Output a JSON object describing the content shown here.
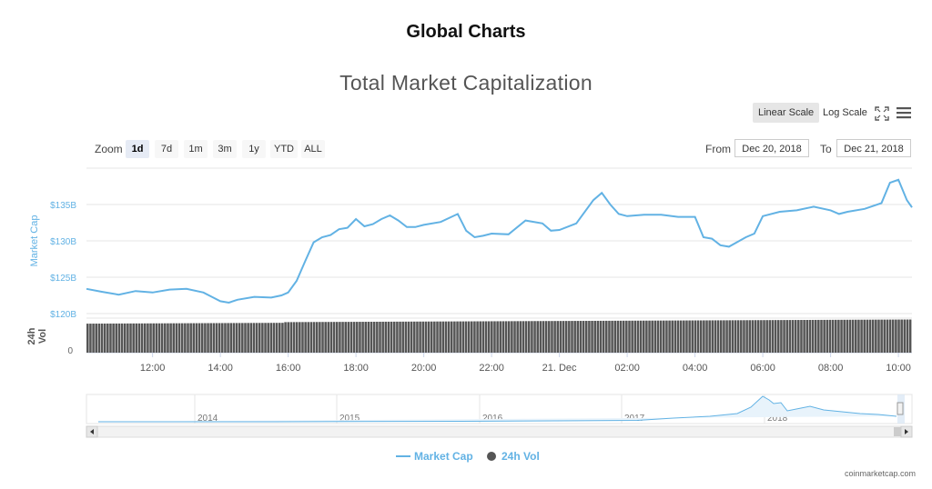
{
  "page": {
    "heading": "Global Charts",
    "credit": "coinmarketcap.com"
  },
  "toolbar": {
    "linear_scale": "Linear Scale",
    "log_scale": "Log Scale",
    "active_scale": "linear",
    "fullscreen_icon": "fullscreen-icon",
    "menu_icon": "hamburger-menu-icon"
  },
  "zoom": {
    "label": "Zoom",
    "options": [
      "1d",
      "7d",
      "1m",
      "3m",
      "1y",
      "YTD",
      "ALL"
    ],
    "selected": "1d"
  },
  "range": {
    "from_label": "From",
    "from_value": "Dec 20, 2018",
    "to_label": "To",
    "to_value": "Dec 21, 2018"
  },
  "chart_data": {
    "type": "line",
    "title": "Total Market Capitalization",
    "ylabel": "Market Cap",
    "y_ticks": [
      "$120B",
      "$125B",
      "$130B",
      "$135B"
    ],
    "ylim": [
      120,
      140
    ],
    "x_ticks": [
      "12:00",
      "14:00",
      "16:00",
      "18:00",
      "20:00",
      "22:00",
      "21. Dec",
      "02:00",
      "04:00",
      "06:00",
      "08:00",
      "10:00"
    ],
    "x_tick_hours": [
      12,
      14,
      16,
      18,
      20,
      22,
      24,
      26,
      28,
      30,
      32,
      34
    ],
    "xlim_hours": [
      10.05,
      34.4
    ],
    "series": [
      {
        "name": "Market Cap",
        "color": "#62b2e4",
        "x_hours": [
          10.05,
          10.5,
          11.0,
          11.5,
          12.0,
          12.5,
          13.0,
          13.5,
          13.75,
          14.0,
          14.25,
          14.5,
          15.0,
          15.5,
          15.8,
          16.0,
          16.25,
          16.5,
          16.75,
          17.0,
          17.25,
          17.5,
          17.75,
          18.0,
          18.25,
          18.5,
          18.75,
          19.0,
          19.25,
          19.5,
          19.75,
          20.0,
          20.5,
          21.0,
          21.25,
          21.5,
          21.75,
          22.0,
          22.5,
          23.0,
          23.5,
          23.75,
          24.0,
          24.5,
          25.0,
          25.25,
          25.5,
          25.75,
          26.0,
          26.5,
          27.0,
          27.5,
          28.0,
          28.25,
          28.5,
          28.75,
          29.0,
          29.5,
          29.75,
          30.0,
          30.5,
          31.0,
          31.5,
          32.0,
          32.25,
          32.5,
          33.0,
          33.5,
          33.75,
          34.0,
          34.25,
          34.4
        ],
        "values": [
          123.4,
          123.0,
          122.6,
          123.1,
          122.9,
          123.3,
          123.4,
          122.9,
          122.3,
          121.7,
          121.5,
          121.9,
          122.3,
          122.2,
          122.5,
          122.9,
          124.5,
          127.2,
          129.8,
          130.5,
          130.8,
          131.6,
          131.8,
          133.0,
          132.0,
          132.3,
          133.0,
          133.5,
          132.8,
          131.9,
          131.9,
          132.2,
          132.6,
          133.7,
          131.4,
          130.5,
          130.7,
          131.0,
          130.9,
          132.8,
          132.4,
          131.4,
          131.5,
          132.4,
          135.6,
          136.6,
          135.0,
          133.7,
          133.4,
          133.6,
          133.6,
          133.3,
          133.3,
          130.5,
          130.3,
          129.4,
          129.2,
          130.5,
          131.0,
          133.4,
          134.0,
          134.2,
          134.7,
          134.2,
          133.7,
          134.0,
          134.4,
          135.2,
          138.0,
          138.4,
          135.6,
          134.6
        ]
      },
      {
        "name": "24h Vol",
        "color": "#555555",
        "bar_fill_start": 0.84,
        "bar_fill_end": 0.94
      }
    ],
    "navigator": {
      "x_labels": [
        "2014",
        "2015",
        "2016",
        "2017",
        "2018"
      ]
    },
    "y2_label": "24h Vol",
    "y2_ticks": [
      "0"
    ],
    "legend": [
      "Market Cap",
      "24h Vol"
    ],
    "legend_position": "bottom-center",
    "grid": true
  }
}
